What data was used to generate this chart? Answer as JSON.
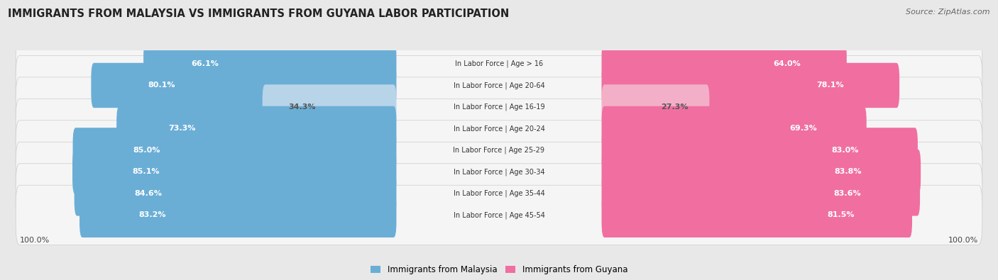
{
  "title": "IMMIGRANTS FROM MALAYSIA VS IMMIGRANTS FROM GUYANA LABOR PARTICIPATION",
  "source": "Source: ZipAtlas.com",
  "categories": [
    "In Labor Force | Age > 16",
    "In Labor Force | Age 20-64",
    "In Labor Force | Age 16-19",
    "In Labor Force | Age 20-24",
    "In Labor Force | Age 25-29",
    "In Labor Force | Age 30-34",
    "In Labor Force | Age 35-44",
    "In Labor Force | Age 45-54"
  ],
  "malaysia_values": [
    66.1,
    80.1,
    34.3,
    73.3,
    85.0,
    85.1,
    84.6,
    83.2
  ],
  "guyana_values": [
    64.0,
    78.1,
    27.3,
    69.3,
    83.0,
    83.8,
    83.6,
    81.5
  ],
  "malaysia_color": "#6aaed6",
  "malaysia_color_light": "#b8d4e8",
  "guyana_color": "#f06fa0",
  "guyana_color_light": "#f4afc8",
  "label_malaysia": "Immigrants from Malaysia",
  "label_guyana": "Immigrants from Guyana",
  "background_color": "#e8e8e8",
  "row_bg_color": "#f5f5f5",
  "title_fontsize": 10.5,
  "source_fontsize": 8,
  "bar_label_fontsize": 8,
  "category_fontsize": 7,
  "legend_fontsize": 8.5,
  "footer_fontsize": 8
}
